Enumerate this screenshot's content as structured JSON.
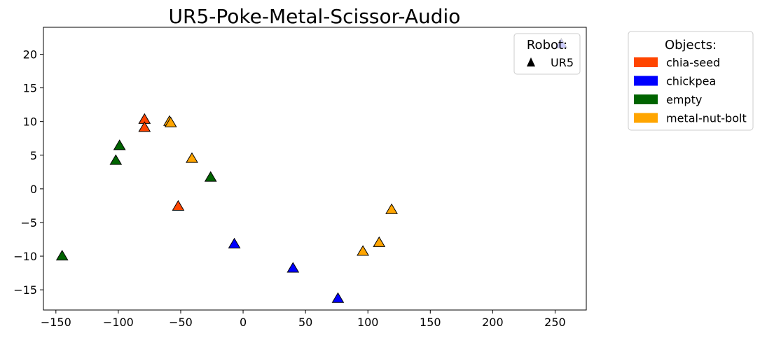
{
  "chart_data": {
    "type": "scatter",
    "title": "UR5-Poke-Metal-Scissor-Audio",
    "xlabel": "",
    "ylabel": "",
    "xlim": [
      -160,
      275
    ],
    "ylim": [
      -18,
      24
    ],
    "xticks": [
      -150,
      -100,
      -50,
      0,
      50,
      100,
      150,
      200,
      250
    ],
    "yticks": [
      -15,
      -10,
      -5,
      0,
      5,
      10,
      15,
      20
    ],
    "xtick_labels": [
      "−150",
      "−100",
      "−50",
      "0",
      "50",
      "100",
      "150",
      "200",
      "250"
    ],
    "ytick_labels": [
      "−15",
      "−10",
      "−5",
      "0",
      "5",
      "10",
      "15",
      "20"
    ],
    "marker": "triangle",
    "series": [
      {
        "name": "chia-seed",
        "color": "#ff4500",
        "points": [
          [
            -79,
            10.3
          ],
          [
            -79,
            9.1
          ],
          [
            -52,
            -2.6
          ]
        ]
      },
      {
        "name": "chickpea",
        "color": "#0000ff",
        "points": [
          [
            -7,
            -8.2
          ],
          [
            40,
            -11.8
          ],
          [
            76,
            -16.3
          ],
          [
            255,
            21.5
          ]
        ]
      },
      {
        "name": "empty",
        "color": "#006400",
        "points": [
          [
            -99,
            6.4
          ],
          [
            -102,
            4.2
          ],
          [
            -26,
            1.7
          ],
          [
            -145,
            -10
          ]
        ]
      },
      {
        "name": "metal-nut-bolt",
        "color": "#ffa500",
        "points": [
          [
            -59,
            10
          ],
          [
            -58,
            9.8
          ],
          [
            -41,
            4.5
          ],
          [
            119,
            -3.1
          ],
          [
            109,
            -8
          ],
          [
            96,
            -9.3
          ]
        ]
      }
    ],
    "legend_robot": {
      "title": "Robot:",
      "entries": [
        {
          "label": "UR5",
          "marker": "triangle",
          "color": "#000000"
        }
      ],
      "placement": "top-right inside"
    },
    "legend_objects": {
      "title": "Objects:",
      "placement": "right outside"
    },
    "grid": false
  }
}
